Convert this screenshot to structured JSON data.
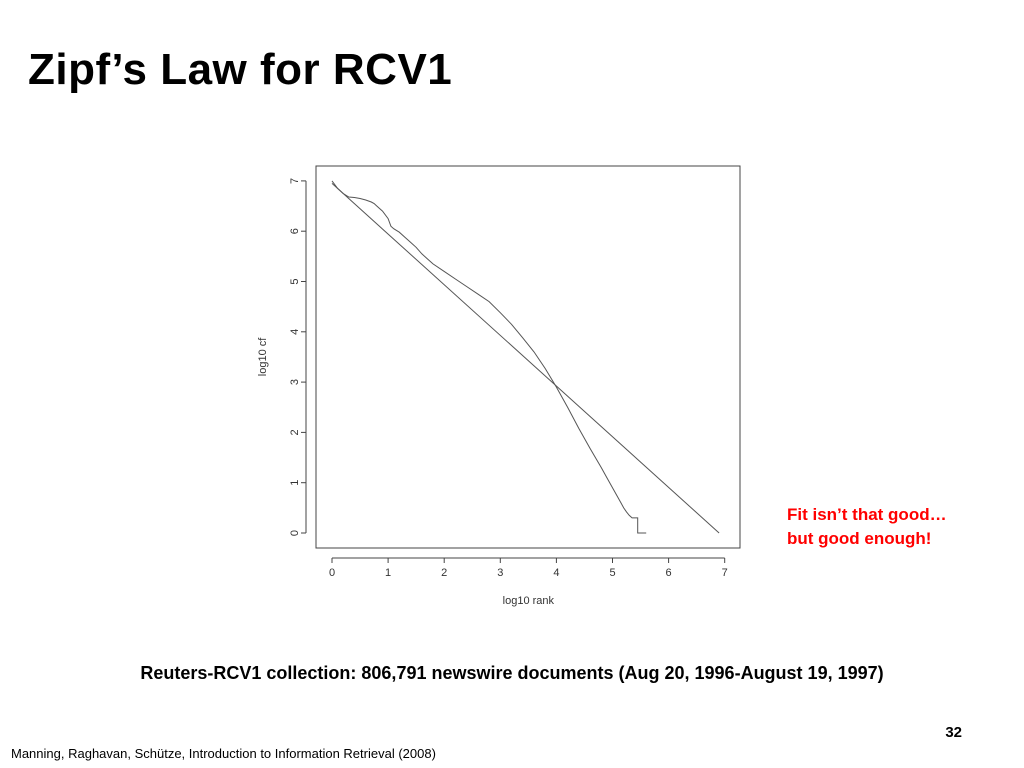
{
  "slide": {
    "title": "Zipf’s Law for RCV1",
    "annotation": [
      "Fit isn’t that good…",
      "but good enough!"
    ],
    "caption": "Reuters-RCV1 collection: 806,791 newswire documents (Aug 20, 1996-August 19, 1997)",
    "page_number": "32",
    "footer": "Manning, Raghavan, Schütze, Introduction to Information Retrieval (2008)",
    "annotation_color": "#ff0000"
  },
  "chart_data": {
    "type": "line",
    "title": "",
    "xlabel": "log10 rank",
    "ylabel": "log10 cf",
    "xlim": [
      0,
      7
    ],
    "ylim": [
      0,
      7
    ],
    "x_ticks": [
      "0",
      "1",
      "2",
      "3",
      "4",
      "5",
      "6",
      "7"
    ],
    "y_ticks": [
      "0",
      "1",
      "2",
      "3",
      "4",
      "5",
      "6",
      "7"
    ],
    "grid": false,
    "legend": "none",
    "series": [
      {
        "x": [
          0,
          0.1,
          0.2,
          0.3,
          0.4,
          0.5,
          0.6,
          0.7,
          0.75,
          0.8,
          0.9,
          1.0,
          1.05,
          1.1,
          1.2,
          1.3,
          1.4,
          1.5,
          1.6,
          1.7,
          1.8,
          2.0,
          2.2,
          2.4,
          2.6,
          2.8,
          3.0,
          3.2,
          3.4,
          3.6,
          3.8,
          4.0,
          4.2,
          4.4,
          4.6,
          4.8,
          4.9,
          5.0,
          5.05,
          5.1,
          5.15,
          5.2,
          5.25,
          5.3,
          5.35,
          5.35,
          5.4,
          5.45,
          5.45,
          5.6
        ],
        "y": [
          7.0,
          6.85,
          6.75,
          6.68,
          6.67,
          6.65,
          6.62,
          6.58,
          6.55,
          6.5,
          6.4,
          6.25,
          6.1,
          6.05,
          5.98,
          5.88,
          5.78,
          5.68,
          5.55,
          5.45,
          5.35,
          5.2,
          5.05,
          4.9,
          4.75,
          4.6,
          4.38,
          4.15,
          3.88,
          3.6,
          3.27,
          2.9,
          2.5,
          2.08,
          1.68,
          1.3,
          1.1,
          0.9,
          0.8,
          0.7,
          0.6,
          0.5,
          0.42,
          0.35,
          0.3,
          0.3,
          0.3,
          0.3,
          0.0,
          0.0
        ]
      },
      {
        "x": [
          0,
          6.9
        ],
        "y": [
          6.95,
          0.0
        ]
      }
    ]
  }
}
